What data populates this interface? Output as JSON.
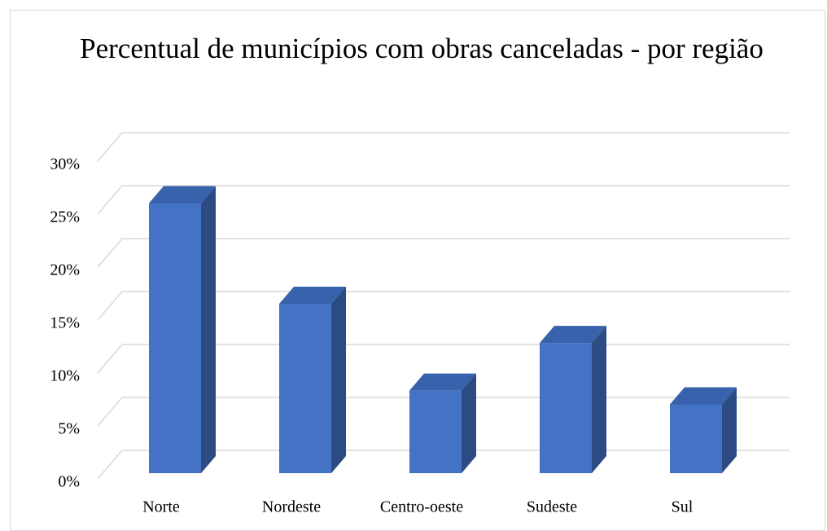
{
  "chart_data": {
    "type": "bar3d",
    "title": "Percentual de municípios com obras canceladas - por região",
    "categories": [
      "Norte",
      "Nordeste",
      "Centro-oeste",
      "Sudeste",
      "Sul"
    ],
    "values": [
      25.5,
      16,
      7.8,
      12.3,
      6.5
    ],
    "color": "#4472c4",
    "ylim": [
      0,
      30
    ],
    "yticks": [
      {
        "value": 0,
        "label": "0%"
      },
      {
        "value": 5,
        "label": "5%"
      },
      {
        "value": 10,
        "label": "10%"
      },
      {
        "value": 15,
        "label": "15%"
      },
      {
        "value": 20,
        "label": "20%"
      },
      {
        "value": 25,
        "label": "25%"
      },
      {
        "value": 30,
        "label": "30%"
      }
    ],
    "grid": true
  }
}
